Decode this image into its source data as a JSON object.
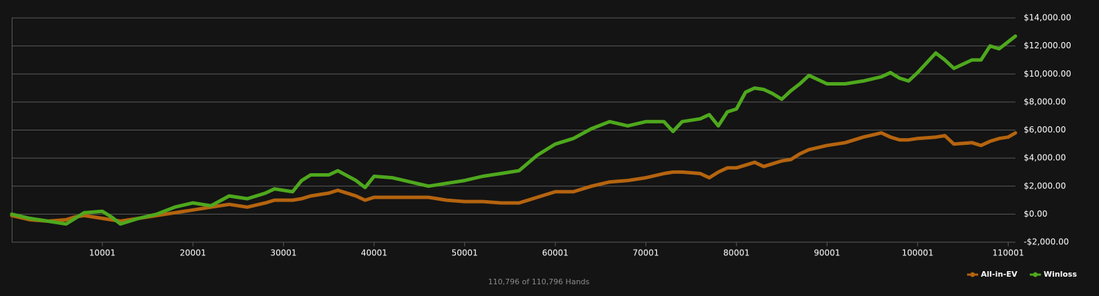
{
  "chart_data": {
    "type": "line",
    "footer": "110,796 of 110,796 Hands",
    "x": [
      1,
      2001,
      4001,
      6001,
      7001,
      8001,
      10001,
      11001,
      12001,
      14001,
      16001,
      18001,
      20001,
      22001,
      24001,
      26001,
      28001,
      29001,
      31001,
      32001,
      33001,
      35001,
      36001,
      38001,
      39001,
      40001,
      42001,
      44001,
      46001,
      48001,
      50001,
      52001,
      54001,
      56001,
      58001,
      60001,
      62001,
      64001,
      66001,
      68001,
      70001,
      72001,
      73001,
      74001,
      76001,
      77001,
      78001,
      79001,
      80001,
      81001,
      82001,
      83001,
      84001,
      85001,
      86001,
      87001,
      88001,
      90001,
      92001,
      94001,
      96001,
      97001,
      98001,
      99001,
      100001,
      102001,
      103001,
      104001,
      106001,
      107001,
      108001,
      109001,
      110001,
      110796
    ],
    "series": [
      {
        "name": "All-in-EV",
        "color": "#b5640f",
        "values": [
          -100,
          -400,
          -500,
          -400,
          -200,
          -100,
          -300,
          -400,
          -500,
          -300,
          -100,
          100,
          300,
          500,
          700,
          500,
          800,
          1000,
          1000,
          1100,
          1300,
          1500,
          1700,
          1300,
          1000,
          1200,
          1200,
          1200,
          1200,
          1000,
          900,
          900,
          800,
          800,
          1200,
          1600,
          1600,
          2000,
          2300,
          2400,
          2600,
          2900,
          3000,
          3000,
          2900,
          2600,
          3000,
          3300,
          3300,
          3500,
          3700,
          3400,
          3600,
          3800,
          3900,
          4300,
          4600,
          4900,
          5100,
          5500,
          5800,
          5500,
          5300,
          5300,
          5400,
          5500,
          5600,
          5000,
          5100,
          4900,
          5200,
          5400,
          5500,
          5800
        ]
      },
      {
        "name": "Winloss",
        "color": "#4ea81d",
        "values": [
          0,
          -300,
          -500,
          -700,
          -300,
          100,
          200,
          -200,
          -700,
          -300,
          0,
          500,
          800,
          600,
          1300,
          1100,
          1500,
          1800,
          1600,
          2400,
          2800,
          2800,
          3100,
          2400,
          1900,
          2700,
          2600,
          2300,
          2000,
          2200,
          2400,
          2700,
          2900,
          3100,
          4200,
          5000,
          5400,
          6100,
          6600,
          6300,
          6600,
          6600,
          5900,
          6600,
          6800,
          7100,
          6300,
          7300,
          7500,
          8700,
          9000,
          8900,
          8600,
          8200,
          8800,
          9300,
          9900,
          9300,
          9300,
          9500,
          9800,
          10100,
          9700,
          9500,
          10100,
          11500,
          11000,
          10400,
          11000,
          11000,
          12000,
          11800,
          12300,
          12700
        ]
      }
    ],
    "xlim": [
      1,
      110796
    ],
    "xticks": [
      10001,
      20001,
      30001,
      40001,
      50001,
      60001,
      70001,
      80001,
      90001,
      100001,
      110001
    ],
    "ylim": [
      -2000,
      14000
    ],
    "yticks": [
      {
        "value": -2000,
        "label": "-$2,000.00"
      },
      {
        "value": 0,
        "label": "$0.00"
      },
      {
        "value": 2000,
        "label": "$2,000.00"
      },
      {
        "value": 4000,
        "label": "$4,000.00"
      },
      {
        "value": 6000,
        "label": "$6,000.00"
      },
      {
        "value": 8000,
        "label": "$8,000.00"
      },
      {
        "value": 10000,
        "label": "$10,000.00"
      },
      {
        "value": 12000,
        "label": "$12,000.00"
      },
      {
        "value": 14000,
        "label": "$14,000.00"
      }
    ],
    "grid": true,
    "legend": "lower right"
  }
}
